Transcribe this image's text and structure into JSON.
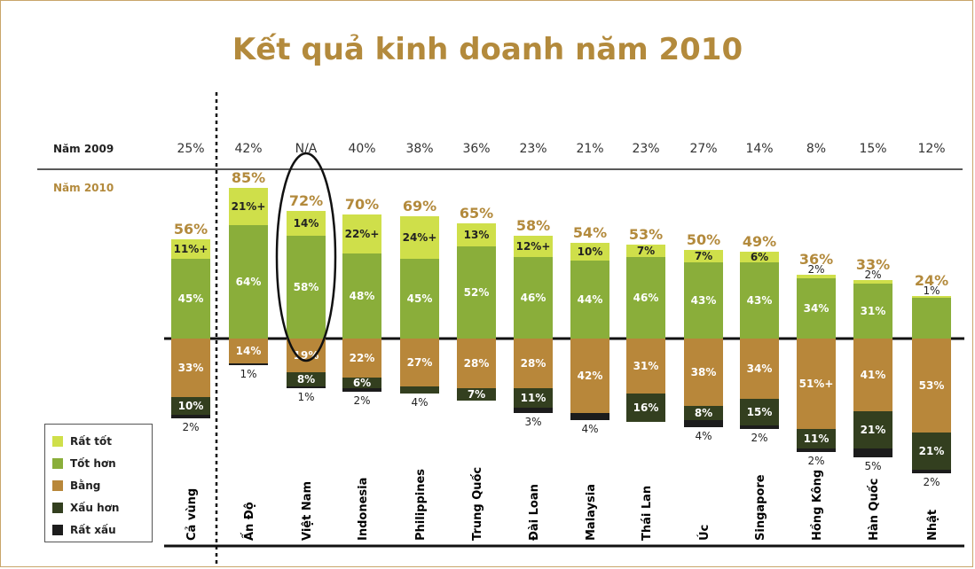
{
  "title": "Kết quả kinh doanh năm 2010",
  "chart_data": {
    "type": "bar",
    "stacked": "diverging",
    "title": "Kết quả kinh doanh năm 2010",
    "row_labels": {
      "year2009": "Năm 2009",
      "year2010": "Năm 2010"
    },
    "categories": [
      "Cả vùng",
      "Ấn Độ",
      "Việt Nam",
      "Indonesia",
      "Philippines",
      "Trung Quốc",
      "Đài Loan",
      "Malaysia",
      "Thái Lan",
      "Úc",
      "Singapore",
      "Hồng Kông",
      "Hàn Quốc",
      "Nhật"
    ],
    "year2009": [
      "25%",
      "42%",
      "N/A",
      "40%",
      "38%",
      "36%",
      "23%",
      "21%",
      "23%",
      "27%",
      "14%",
      "8%",
      "15%",
      "12%"
    ],
    "year2010": [
      "56%",
      "85%",
      "72%",
      "70%",
      "69%",
      "65%",
      "58%",
      "54%",
      "53%",
      "50%",
      "49%",
      "36%",
      "33%",
      "24%"
    ],
    "series": [
      {
        "name": "Rất tốt",
        "color": "#cfdf4a",
        "direction": "up",
        "values": [
          11,
          21,
          14,
          22,
          24,
          13,
          12,
          10,
          7,
          7,
          6,
          2,
          2,
          1
        ],
        "labels": [
          "11%+",
          "21%+",
          "14%",
          "22%+",
          "24%+",
          "13%",
          "12%+",
          "10%",
          "7%",
          "7%",
          "6%",
          "2%",
          "2%",
          "1%"
        ]
      },
      {
        "name": "Tốt hơn",
        "color": "#8aae3a",
        "direction": "up",
        "values": [
          45,
          64,
          58,
          48,
          45,
          52,
          46,
          44,
          46,
          43,
          43,
          34,
          31,
          23
        ],
        "labels": [
          "45%",
          "64%",
          "58%",
          "48%",
          "45%",
          "52%",
          "46%",
          "44%",
          "46%",
          "43%",
          "43%",
          "34%",
          "31%",
          ""
        ]
      },
      {
        "name": "Bằng",
        "color": "#b8873a",
        "direction": "down",
        "values": [
          33,
          14,
          19,
          22,
          27,
          28,
          28,
          42,
          31,
          38,
          34,
          51,
          41,
          53
        ],
        "labels": [
          "33%",
          "14%",
          "19%",
          "22%",
          "27%",
          "28%",
          "28%",
          "42%",
          "31%",
          "38%",
          "34%",
          "51%+",
          "41%",
          "53%"
        ]
      },
      {
        "name": "Xấu hơn",
        "color": "#333f1f",
        "direction": "down",
        "values": [
          10,
          0,
          8,
          6,
          4,
          7,
          11,
          0,
          16,
          8,
          15,
          11,
          21,
          21
        ],
        "labels": [
          "10%",
          "",
          "8%",
          "6%",
          "4%",
          "7%",
          "11%",
          "",
          "16%",
          "8%",
          "15%",
          "11%",
          "21%",
          "21%"
        ]
      },
      {
        "name": "Rất xấu",
        "color": "#1c1c1c",
        "direction": "down",
        "values": [
          2,
          1,
          1,
          2,
          0,
          0,
          3,
          4,
          0,
          4,
          2,
          2,
          5,
          2
        ],
        "labels": [
          "2%",
          "1%",
          "1%",
          "2%",
          "",
          "",
          "3%",
          "4%",
          "",
          "4%",
          "2%",
          "2%",
          "5%",
          "2%"
        ]
      }
    ],
    "highlighted_category": "Việt Nam",
    "legend_position": "bottom-left",
    "grid": false
  }
}
